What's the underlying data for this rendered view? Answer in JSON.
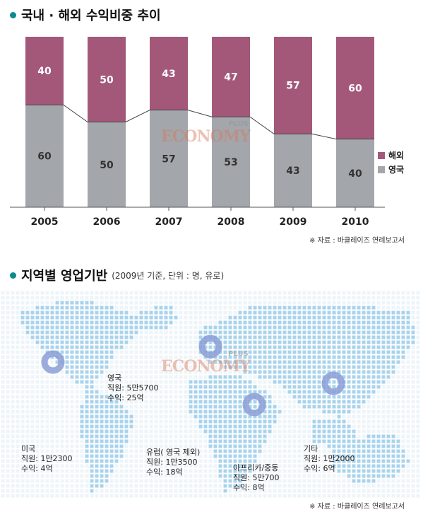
{
  "section1": {
    "title": "국내 · 해외 수익비중 추이",
    "source": "※ 자료 : 바클레이즈 연례보고서"
  },
  "chart_data": {
    "type": "bar",
    "stacked": true,
    "categories": [
      "2005",
      "2006",
      "2007",
      "2008",
      "2009",
      "2010"
    ],
    "series": [
      {
        "name": "영국",
        "color": "#a3a6ab",
        "values": [
          60,
          50,
          57,
          53,
          43,
          40
        ]
      },
      {
        "name": "해외",
        "color": "#a3587a",
        "values": [
          40,
          50,
          43,
          47,
          57,
          60
        ]
      }
    ],
    "ylim": [
      0,
      100
    ],
    "legend": "right",
    "grid": false
  },
  "watermark": {
    "brand": "ECONOMY",
    "plus": "PLUS"
  },
  "section2": {
    "title": "지역별 영업기반",
    "subtitle": "(2009년 기준, 단위 : 명, 유로)",
    "source": "※ 자료 : 바클레이즈 연례보고서",
    "regions": [
      {
        "name": "영국",
        "staff": "직원: 5만5700",
        "revenue": "수익: 25억"
      },
      {
        "name": "미국",
        "staff": "직원: 1만2300",
        "revenue": "수익: 4억"
      },
      {
        "name": "유럽( 영국 제외)",
        "staff": "직원: 1만3500",
        "revenue": "수익: 18억"
      },
      {
        "name": "아프리카/중동",
        "staff": "직원: 5만700",
        "revenue": "수익: 8억"
      },
      {
        "name": "기타",
        "staff": "직원: 1만2000",
        "revenue": "수익: 6억"
      }
    ]
  },
  "colors": {
    "accent": "#0b8a8f",
    "map_dot": "#a9d3ec",
    "marker": "#8b9ed6"
  }
}
